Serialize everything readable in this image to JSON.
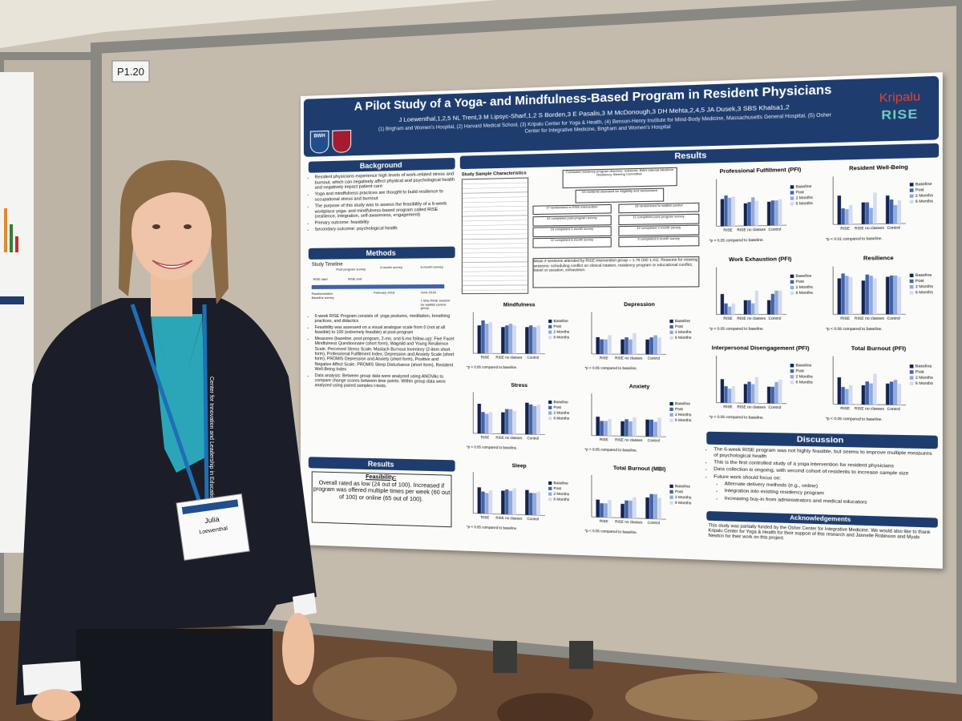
{
  "board_label": "P1.20",
  "poster": {
    "title": "A Pilot Study of a Yoga- and Mindfulness-Based Program in Resident Physicians",
    "authors": "J Loewenthal,1,2,5 NL Trent,3 M Lipsyc-Sharf,1,2 S Borden,3 E Pasalis,3 M McDonough,3 DH Mehta,2,4,5 JA Dusek,3 SBS Khalsa1,2",
    "affiliations": "(1) Brigham and Women's Hospital, (2) Harvard Medical School, (3) Kripalu Center for Yoga & Health, (4) Benson-Henry Institute for Mind-Body Medicine, Massachusetts General Hospital, (5) Osher Center for Integrative Medicine, Brigham and Women's Hospital",
    "bwh": "BWH",
    "kripalu": "Kripalu",
    "rise": "RISE",
    "background": {
      "heading": "Background",
      "bullets": [
        "Resident physicians experience high levels of work-related stress and burnout, which can negatively affect physical and psychological health and negatively impact patient care",
        "Yoga and mindfulness practices are thought to build resilience to occupational stress and burnout",
        "The purpose of this study was to assess the feasibility of a 6-week workplace yoga- and mindfulness-based program called RISE (resilience, integration, self-awareness, engagement)",
        "Primary outcome: feasibility",
        "Secondary outcome: psychological health"
      ]
    },
    "methods": {
      "heading": "Methods",
      "timeline_title": "Study Timeline",
      "timeline": [
        "RISE start",
        "RISE end",
        "Post-program survey",
        "2-month survey",
        "6-month survey",
        "February 2018",
        "June 2018",
        "Randomization Baseline survey",
        "1 time RISE session for waitlist control group"
      ],
      "bullets": [
        "6-week RISE Program consists of: yoga postures, meditation, breathing practices, and didactics",
        "Feasibility was assessed on a visual analogue scale from 0 (not at all feasible) to 100 (extremely feasible) at post-program",
        "Measures (baseline, post-program, 2-mo, and 6-mo follow-up): Five Facet Mindfulness Questionnaire (short form), Wagnild and Young Resilience Scale, Perceived Stress Scale, Maslach Burnout Inventory (2-item short form), Professional Fulfillment Index, Depression and Anxiety Scale (short form), PROMIS Depression and Anxiety (short form), Positive and Negative Affect Scale, PROMIS Sleep Disturbance (short form), Resident Well-Being Index",
        "Data analysis: Between group data were analyzed using ANOVAs to compare change scores between time points. Within group data were analyzed using paired samples t-tests."
      ]
    },
    "results_left": {
      "heading": "Results",
      "feasibility_label": "Feasibility:",
      "feasibility_text": "Overall rated as low (24 out of 100). Increased if program was offered multiple times per week (60 out of 100) or online (65 out of 100)."
    },
    "results": {
      "heading": "Results",
      "sample_title": "Study Sample Characteristics",
      "flow": [
        "Contacted residency program directors, residents: BWH Internal Medicine Residency Steering Committee",
        "43 residents assessed for eligibility and randomized",
        "27 randomized to RISE intervention",
        "16 randomized to waitlist control",
        "22 completed post-program survey",
        "11 completed post-program survey",
        "23 completed 2-month survey",
        "12 completed 2-month survey",
        "12 completed 6-month survey",
        "3 completed 6-month survey"
      ],
      "mean_sessions": "Mean # sessions attended by RISE intervention group = 1.76 (SD 1.41). Reasons for missing sessions: scheduling conflict on clinical rotation, residency program or educational conflict, travel or vacation, exhaustion.",
      "legend": [
        "Baseline",
        "Post",
        "2 Months",
        "6 Months"
      ],
      "colors": [
        "#14234f",
        "#3f63ad",
        "#93a9d8",
        "#d3dbef"
      ],
      "groups": [
        "RISE",
        "RISE no classes",
        "Control"
      ],
      "charts": [
        {
          "title": "Professional Fulfillment (PFI)",
          "ylim": [
            0,
            4
          ],
          "values": [
            [
              2.3,
              2.6,
              2.4,
              2.5
            ],
            [
              1.9,
              2.0,
              2.4,
              2.1
            ],
            [
              2.0,
              2.1,
              2.1,
              2.2
            ]
          ],
          "note": "*p < 0.05 compared to baseline."
        },
        {
          "title": "Resident Well-Being",
          "ylim": [
            0,
            6
          ],
          "values": [
            [
              3.6,
              2.0,
              1.9,
              2.4
            ],
            [
              2.7,
              2.7,
              2.0,
              3.9
            ],
            [
              3.5,
              3.0,
              2.3,
              2.9
            ]
          ],
          "note": "*p < 0.01 compared to baseline."
        },
        {
          "title": "Work Exhaustion (PFI)",
          "ylim": [
            1.25,
            2.75
          ],
          "values": [
            [
              1.9,
              1.6,
              1.5,
              1.6
            ],
            [
              1.7,
              1.7,
              1.6,
              2.0
            ],
            [
              1.7,
              1.9,
              2.0,
              2.0
            ]
          ],
          "note": "*p < 0.05 compared to baseline."
        },
        {
          "title": "Resilience",
          "ylim": [
            40,
            80
          ],
          "values": [
            [
              70,
              74,
              72,
              71
            ],
            [
              68,
              73,
              72,
              70
            ],
            [
              71,
              72,
              72,
              71
            ]
          ],
          "note": "*p < 0.05 compared to baseline."
        },
        {
          "title": "Interpersonal Disengagement (PFI)",
          "ylim": [
            0,
            2
          ],
          "values": [
            [
              1.0,
              0.7,
              0.6,
              0.7
            ],
            [
              0.8,
              0.9,
              0.8,
              1.1
            ],
            [
              0.7,
              0.7,
              0.9,
              1.0
            ]
          ],
          "note": "*p < 0.05 compared to baseline."
        },
        {
          "title": "Total Burnout (PFI)",
          "ylim": [
            0,
            2.5
          ],
          "values": [
            [
              1.4,
              0.9,
              0.8,
              1.0
            ],
            [
              1.0,
              1.2,
              1.1,
              1.6
            ],
            [
              1.1,
              1.2,
              1.3,
              1.1
            ]
          ],
          "note": "*p < 0.05 compared to baseline."
        },
        {
          "title": "Mindfulness",
          "ylim": [
            0,
            25
          ],
          "values": [
            [
              17,
              20,
              18,
              19
            ],
            [
              16,
              17,
              18,
              17
            ],
            [
              16,
              17,
              16,
              17
            ]
          ],
          "note": "*p < 0.05 compared to baseline."
        },
        {
          "title": "Depression",
          "ylim": [
            0,
            20
          ],
          "values": [
            [
              8,
              7,
              7,
              9
            ],
            [
              7,
              8,
              7,
              10
            ],
            [
              7,
              8,
              9,
              8
            ]
          ],
          "note": "*p < 0.05 compared to baseline."
        },
        {
          "title": "Stress",
          "ylim": [
            0,
            25
          ],
          "values": [
            [
              18,
              13,
              12,
              13
            ],
            [
              13,
              15,
              15,
              14
            ],
            [
              19,
              18,
              17,
              18
            ]
          ],
          "note": "*p < 0.05 compared to baseline."
        },
        {
          "title": "Anxiety",
          "ylim": [
            0,
            20
          ],
          "values": [
            [
              9,
              7,
              7,
              8
            ],
            [
              7,
              8,
              7,
              9
            ],
            [
              8,
              8,
              7,
              9
            ]
          ],
          "note": "*p < 0.05 compared to baseline."
        },
        {
          "title": "Sleep",
          "ylim": [
            0,
            30
          ],
          "values": [
            [
              19,
              16,
              15,
              17
            ],
            [
              17,
              18,
              17,
              19
            ],
            [
              18,
              16,
              16,
              17
            ]
          ],
          "note": "*p < 0.05 compared to baseline."
        },
        {
          "title": "Total Burnout (MBI)",
          "ylim": [
            0,
            12
          ],
          "values": [
            [
              5,
              4,
              4,
              5
            ],
            [
              4,
              5,
              5,
              6
            ],
            [
              6,
              7,
              7,
              6
            ]
          ],
          "note": "*p < 0.05 compared to baseline."
        }
      ]
    },
    "discussion": {
      "heading": "Discussion",
      "bullets": [
        "The 6-week RISE program was not highly feasible, but seems to improve multiple measures of psychological health",
        "This is the first controlled study of a yoga intervention for resident physicians",
        "Data collection is ongoing, with second cohort of residents to increase sample size",
        "Future work should focus on:"
      ],
      "sub_bullets": [
        "Alternate delivery methods (e.g., online)",
        "Integration into existing residency program",
        "Increasing buy-in from administrators and medical educators"
      ]
    },
    "acknowledgements": {
      "heading": "Acknowledgements",
      "text": "This study was partially funded by the Osher Center for Integrative Medicine. We would also like to thank Kripalu Center for Yoga & Health for their support of this research and Jannelle Robinson and Myals Newton for their work on this project."
    }
  },
  "badge": {
    "first": "Julia",
    "last": "Loewenthal"
  },
  "lanyard": "Center for Innovation and Leadership in Education"
}
